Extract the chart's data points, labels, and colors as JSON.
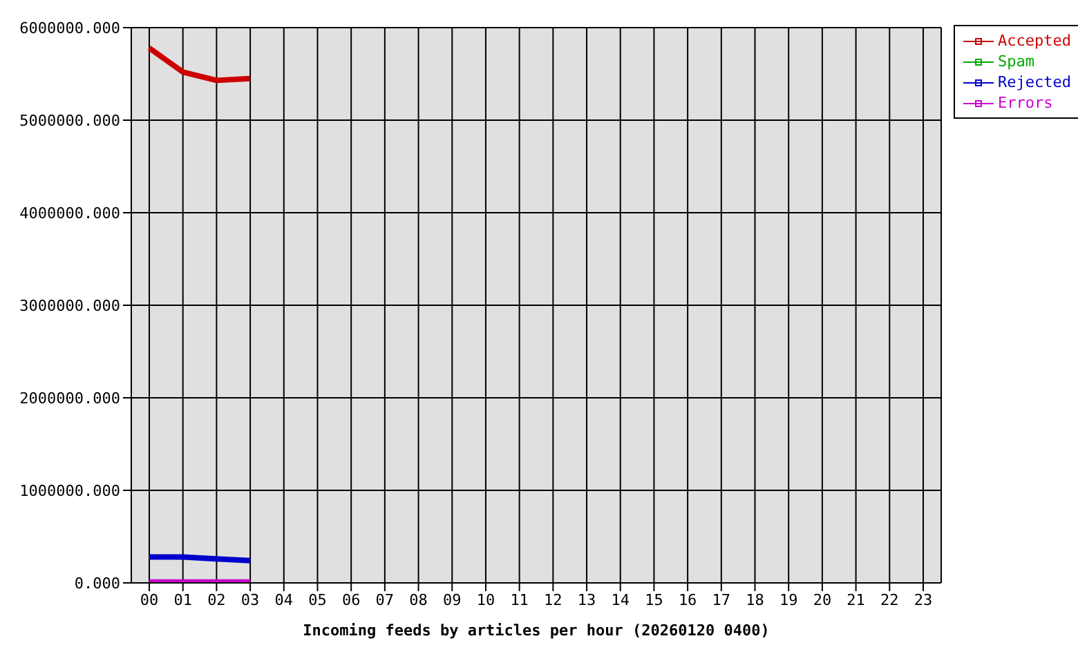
{
  "chart_data": {
    "type": "line",
    "xlabel": "Incoming feeds by articles per hour (20260120 0400)",
    "categories": [
      "00",
      "01",
      "02",
      "03",
      "04",
      "05",
      "06",
      "07",
      "08",
      "09",
      "10",
      "11",
      "12",
      "13",
      "14",
      "15",
      "16",
      "17",
      "18",
      "19",
      "20",
      "21",
      "22",
      "23"
    ],
    "series": [
      {
        "name": "Accepted",
        "color": "#cc0000",
        "values": [
          5780000,
          5520000,
          5430000,
          5450000,
          null,
          null,
          null,
          null,
          null,
          null,
          null,
          null,
          null,
          null,
          null,
          null,
          null,
          null,
          null,
          null,
          null,
          null,
          null,
          null
        ]
      },
      {
        "name": "Spam",
        "color": "#00aa00",
        "values": [
          null,
          null,
          null,
          null,
          null,
          null,
          null,
          null,
          null,
          null,
          null,
          null,
          null,
          null,
          null,
          null,
          null,
          null,
          null,
          null,
          null,
          null,
          null,
          null
        ]
      },
      {
        "name": "Rejected",
        "color": "#0000cc",
        "values": [
          280000,
          280000,
          260000,
          240000,
          null,
          null,
          null,
          null,
          null,
          null,
          null,
          null,
          null,
          null,
          null,
          null,
          null,
          null,
          null,
          null,
          null,
          null,
          null,
          null
        ]
      },
      {
        "name": "Errors",
        "color": "#cc00cc",
        "values": [
          10000,
          10000,
          10000,
          10000,
          null,
          null,
          null,
          null,
          null,
          null,
          null,
          null,
          null,
          null,
          null,
          null,
          null,
          null,
          null,
          null,
          null,
          null,
          null,
          null
        ]
      }
    ],
    "ylim": [
      0,
      6000000
    ],
    "yticks": [
      {
        "value": 0,
        "label": "0.000"
      },
      {
        "value": 1000000,
        "label": "1000000.000"
      },
      {
        "value": 2000000,
        "label": "2000000.000"
      },
      {
        "value": 3000000,
        "label": "3000000.000"
      },
      {
        "value": 4000000,
        "label": "4000000.000"
      },
      {
        "value": 5000000,
        "label": "5000000.000"
      },
      {
        "value": 6000000,
        "label": "6000000.000"
      }
    ],
    "grid": true,
    "legend": "top right",
    "marker": "none",
    "line_style": "solid"
  }
}
